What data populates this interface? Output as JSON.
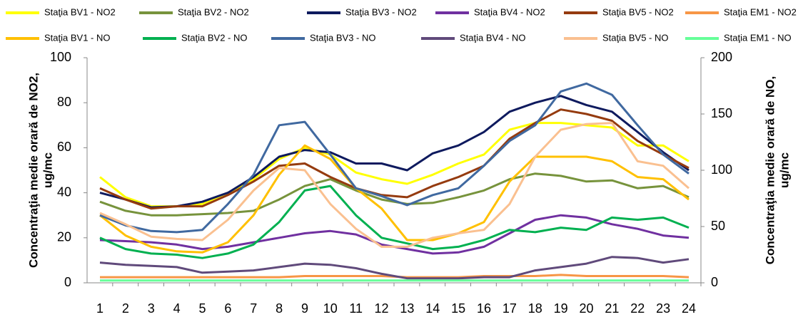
{
  "chart_data": {
    "type": "line",
    "ylabel": [
      "Concentraţia medie orară de NO2,",
      "ug/mc"
    ],
    "y2label": [
      "Concentraţia medie orară de NO,",
      "ug/mc"
    ],
    "categories": [
      "1",
      "2",
      "3",
      "4",
      "5",
      "6",
      "7",
      "8",
      "9",
      "10",
      "11",
      "12",
      "13",
      "14",
      "15",
      "16",
      "17",
      "18",
      "19",
      "20",
      "21",
      "22",
      "23",
      "24"
    ],
    "ylim": [
      0,
      100
    ],
    "yticks": [
      0,
      20,
      40,
      60,
      80,
      100
    ],
    "y2lim": [
      0,
      200
    ],
    "y2ticks": [
      0,
      50,
      100,
      150,
      200
    ],
    "grid": false,
    "series": [
      {
        "name": "Staţia BV1 - NO2",
        "color": "#ffff00",
        "values": [
          47,
          38,
          34,
          34,
          35,
          40,
          46,
          55,
          60,
          57,
          49,
          46,
          44,
          48,
          53,
          57,
          68,
          71,
          71,
          70,
          69,
          61,
          61,
          54
        ]
      },
      {
        "name": "Staţia BV2 - NO2",
        "color": "#77933c",
        "values": [
          36,
          32,
          30,
          30,
          30.5,
          31,
          32,
          37,
          43,
          46,
          41,
          37,
          35,
          35.5,
          38,
          41,
          46,
          48.5,
          47.5,
          45,
          45.5,
          42,
          43,
          38
        ]
      },
      {
        "name": "Staţia BV3 - NO2",
        "color": "#0e1a5e",
        "values": [
          40,
          37,
          33.5,
          34,
          36,
          40,
          47,
          56,
          59,
          58,
          53,
          53,
          50,
          57.5,
          61,
          67,
          76,
          80,
          83,
          79,
          76,
          67,
          58,
          50
        ]
      },
      {
        "name": "Staţia BV4 - NO2",
        "color": "#7030a0",
        "values": [
          19,
          18.5,
          18,
          17,
          15,
          16,
          18,
          20,
          22,
          23,
          21.5,
          17,
          15,
          13,
          13.5,
          16,
          22,
          28,
          30,
          29,
          26,
          24,
          21,
          20
        ]
      },
      {
        "name": "Staţia BV5 - NO2",
        "color": "#953b0f",
        "values": [
          42,
          37,
          33,
          34,
          34,
          39,
          45,
          52,
          53,
          47,
          42,
          39,
          38,
          43,
          47,
          52,
          64,
          71,
          77,
          75,
          72,
          63,
          57,
          51
        ]
      },
      {
        "name": "Staţia EM1 - NO2",
        "color": "#f79646",
        "values": [
          2.5,
          2.5,
          2.5,
          2.5,
          2.5,
          2.5,
          2.5,
          2.5,
          3,
          3,
          3,
          3,
          2.5,
          2.5,
          2.5,
          3,
          3,
          3,
          3.5,
          3,
          3,
          3,
          3,
          2.5
        ]
      },
      {
        "name": "Staţia BV1 - NO",
        "color": "#ffc000",
        "axis": "y2",
        "values": [
          60,
          42,
          32,
          28,
          27,
          36,
          60,
          96,
          122,
          110,
          84,
          66,
          38,
          38,
          44,
          54,
          90,
          112,
          112,
          112,
          108,
          94,
          92,
          74
        ]
      },
      {
        "name": "Staţia BV2 - NO",
        "color": "#00b050",
        "axis": "y2",
        "values": [
          40,
          30,
          26,
          25,
          22,
          26,
          34,
          54,
          82,
          86,
          60,
          40,
          35,
          30,
          32,
          38,
          47,
          45,
          49,
          47,
          58,
          56,
          58,
          49
        ]
      },
      {
        "name": "Staţia BV3 - NO",
        "color": "#4069a0",
        "axis": "y2",
        "values": [
          60,
          51,
          46,
          45,
          47,
          70,
          96,
          140,
          143,
          114,
          84,
          77,
          69,
          78,
          84,
          104,
          126,
          140,
          170,
          177,
          167,
          140,
          114,
          97
        ]
      },
      {
        "name": "Staţia BV4 - NO",
        "color": "#604a7b",
        "axis": "y2",
        "values": [
          18,
          16,
          15,
          14,
          9,
          10,
          11,
          14,
          17,
          16,
          13,
          8,
          4,
          4,
          4,
          5,
          5,
          11,
          14,
          17,
          23,
          22,
          18,
          21
        ]
      },
      {
        "name": "Staţia BV5 - NO",
        "color": "#fac090",
        "axis": "y2",
        "values": [
          62,
          52,
          41,
          39,
          38,
          56,
          82,
          102,
          100,
          70,
          48,
          32,
          32,
          40,
          44,
          47,
          70,
          112,
          136,
          141,
          142,
          108,
          104,
          84
        ]
      },
      {
        "name": "Staţia EM1 - NO",
        "color": "#66ff99",
        "axis": "y2",
        "values": [
          2,
          2,
          2,
          2,
          2,
          2,
          2,
          2,
          2,
          2,
          2,
          2,
          2,
          2,
          2,
          2,
          2,
          2,
          2,
          2,
          2,
          2,
          2,
          2
        ]
      }
    ]
  }
}
